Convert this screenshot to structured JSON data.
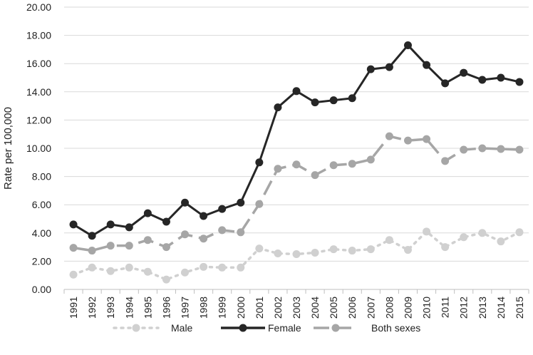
{
  "chart_data": {
    "type": "line",
    "title": "",
    "xlabel": "",
    "ylabel": "Rate  per 100,000",
    "ylim": [
      0,
      20
    ],
    "y_ticks": [
      "0.00",
      "2.00",
      "4.00",
      "6.00",
      "8.00",
      "10.00",
      "12.00",
      "14.00",
      "16.00",
      "18.00",
      "20.00"
    ],
    "grid": true,
    "legend_position": "bottom",
    "categories": [
      "1991",
      "1992",
      "1993",
      "1994",
      "1995",
      "1996",
      "1997",
      "1998",
      "1999",
      "2000",
      "2001",
      "2002",
      "2003",
      "2004",
      "2005",
      "2006",
      "2007",
      "2008",
      "2009",
      "2010",
      "2011",
      "2012",
      "2013",
      "2014",
      "2015"
    ],
    "series": [
      {
        "name": "Male",
        "color": "#d0d0d0",
        "style": "dotted",
        "values": [
          1.05,
          1.55,
          1.3,
          1.55,
          1.25,
          0.7,
          1.2,
          1.6,
          1.55,
          1.55,
          2.9,
          2.55,
          2.5,
          2.6,
          2.85,
          2.75,
          2.85,
          3.5,
          2.8,
          4.1,
          3.0,
          3.7,
          4.0,
          3.4,
          4.05
        ]
      },
      {
        "name": "Female",
        "color": "#262626",
        "style": "solid",
        "values": [
          4.6,
          3.8,
          4.6,
          4.4,
          5.4,
          4.8,
          6.15,
          5.2,
          5.7,
          6.15,
          9.0,
          12.9,
          14.05,
          13.25,
          13.4,
          13.55,
          15.6,
          15.75,
          17.3,
          15.9,
          14.6,
          15.35,
          14.85,
          15.0,
          14.7
        ]
      },
      {
        "name": "Both sexes",
        "color": "#a6a6a6",
        "style": "dashed",
        "values": [
          2.95,
          2.75,
          3.1,
          3.1,
          3.5,
          3.0,
          3.9,
          3.6,
          4.2,
          4.05,
          6.05,
          8.55,
          8.85,
          8.1,
          8.8,
          8.9,
          9.2,
          10.85,
          10.55,
          10.65,
          9.1,
          9.9,
          10.0,
          9.95,
          9.9
        ]
      }
    ]
  }
}
